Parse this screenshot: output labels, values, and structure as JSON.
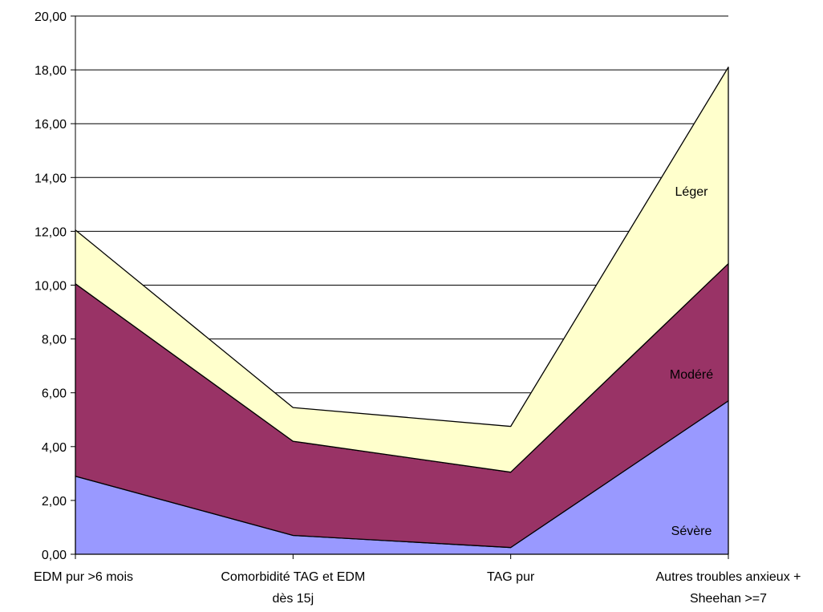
{
  "chart_data": {
    "type": "area",
    "stacked": true,
    "categories": [
      [
        "EDM pur >6 mois"
      ],
      [
        "Comorbidité TAG et EDM",
        "dès 15j"
      ],
      [
        "TAG pur"
      ],
      [
        "Autres troubles anxieux +",
        "Sheehan >=7"
      ]
    ],
    "series": [
      {
        "name": "Sévère",
        "color": "#9999ff",
        "values": [
          2.9,
          0.7,
          0.25,
          5.7
        ]
      },
      {
        "name": "Modéré",
        "color": "#993366",
        "values": [
          7.15,
          3.5,
          2.8,
          5.1
        ]
      },
      {
        "name": "Léger",
        "color": "#ffffcc",
        "values": [
          2.0,
          1.25,
          1.7,
          7.3
        ]
      }
    ],
    "ylim": [
      0,
      20
    ],
    "yticks": [
      "0,00",
      "2,00",
      "4,00",
      "6,00",
      "8,00",
      "10,00",
      "12,00",
      "14,00",
      "16,00",
      "18,00",
      "20,00"
    ],
    "grid": true,
    "legend": "inline labels",
    "xlabel": "",
    "ylabel": "",
    "title": ""
  }
}
